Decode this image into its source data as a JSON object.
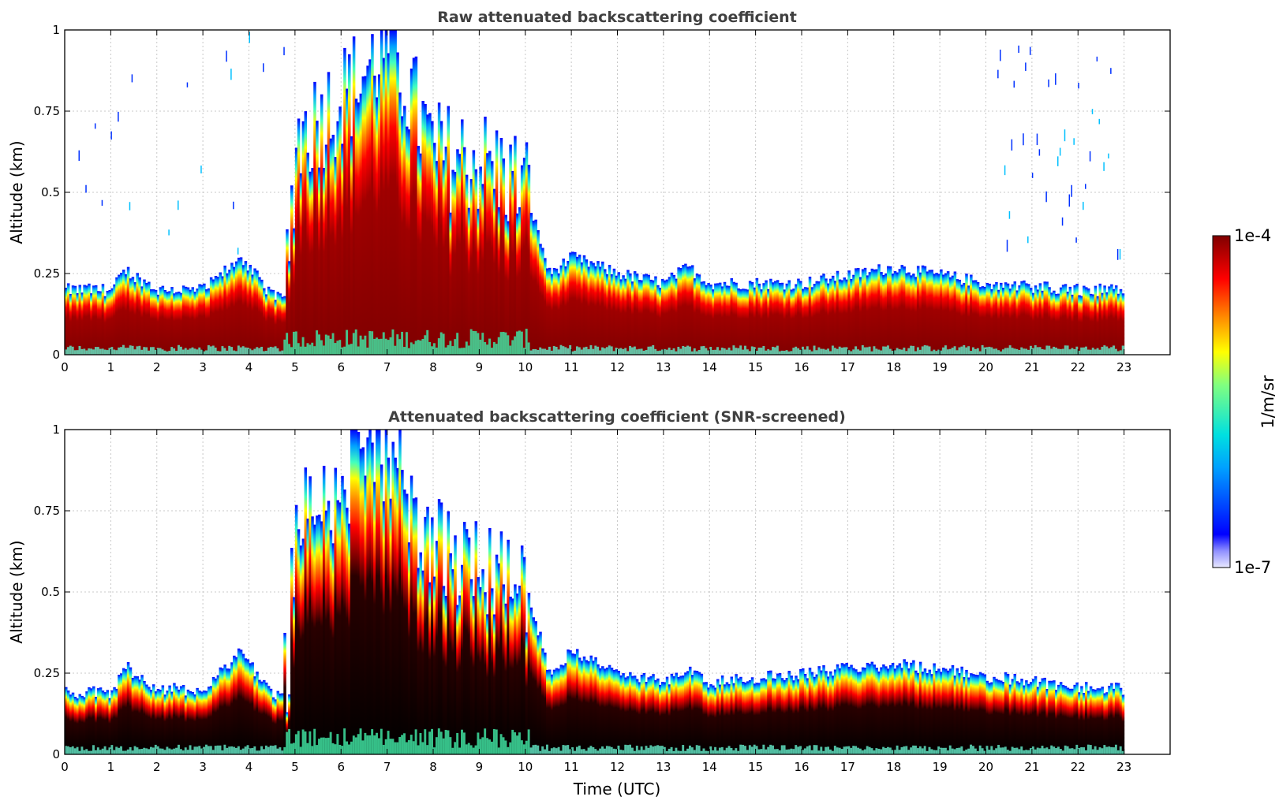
{
  "chart_data": [
    {
      "type": "heatmap",
      "title": "Raw attenuated backscattering coefficient",
      "xlabel": "",
      "ylabel": "Altitude (km)",
      "xlim": [
        0,
        24
      ],
      "ylim": [
        0,
        1
      ],
      "x_ticks": [
        "0",
        "1",
        "2",
        "3",
        "4",
        "5",
        "6",
        "7",
        "8",
        "9",
        "10",
        "11",
        "12",
        "13",
        "14",
        "15",
        "16",
        "17",
        "18",
        "19",
        "20",
        "21",
        "22",
        "23"
      ],
      "y_ticks": [
        "0",
        "0.25",
        "0.5",
        "0.75",
        "1"
      ],
      "grid": true,
      "data_end_time": 23,
      "boundary_layer_top_km": {
        "time": [
          0,
          1,
          1.3,
          2,
          3,
          3.8,
          4.5,
          4.8,
          5.0,
          6.0,
          6.5,
          7.0,
          8.0,
          9.0,
          10.0,
          10.5,
          11.0,
          12.0,
          13.0,
          13.5,
          14,
          16,
          18,
          20,
          22,
          23
        ],
        "top": [
          0.2,
          0.2,
          0.26,
          0.2,
          0.2,
          0.3,
          0.18,
          0.2,
          0.65,
          0.78,
          0.85,
          0.95,
          0.6,
          0.58,
          0.5,
          0.25,
          0.3,
          0.25,
          0.22,
          0.27,
          0.22,
          0.22,
          0.27,
          0.22,
          0.2,
          0.2
        ]
      }
    },
    {
      "type": "heatmap",
      "title": "Attenuated backscattering coefficient (SNR-screened)",
      "xlabel": "Time (UTC)",
      "ylabel": "Altitude (km)",
      "xlim": [
        0,
        24
      ],
      "ylim": [
        0,
        1
      ],
      "x_ticks": [
        "0",
        "1",
        "2",
        "3",
        "4",
        "5",
        "6",
        "7",
        "8",
        "9",
        "10",
        "11",
        "12",
        "13",
        "14",
        "15",
        "16",
        "17",
        "18",
        "19",
        "20",
        "21",
        "22",
        "23"
      ],
      "y_ticks": [
        "0",
        "0.25",
        "0.5",
        "0.75",
        "1"
      ],
      "grid": true,
      "data_end_time": 23,
      "boundary_layer_top_km": {
        "time": [
          0,
          1,
          1.3,
          2,
          3,
          3.8,
          4.5,
          4.8,
          5.0,
          6.0,
          6.5,
          7.0,
          8.0,
          9.0,
          10.0,
          10.5,
          11.0,
          12.0,
          13.0,
          13.5,
          14,
          16,
          18,
          20,
          22,
          23
        ],
        "top": [
          0.19,
          0.19,
          0.27,
          0.2,
          0.2,
          0.32,
          0.18,
          0.2,
          0.72,
          0.82,
          0.88,
          0.95,
          0.6,
          0.6,
          0.52,
          0.25,
          0.32,
          0.25,
          0.22,
          0.27,
          0.22,
          0.25,
          0.28,
          0.24,
          0.21,
          0.2
        ]
      }
    }
  ],
  "colorbar": {
    "min_label": "1e-7",
    "max_label": "1e-4",
    "unit_label": "1/m/sr",
    "colormap": "jet"
  }
}
